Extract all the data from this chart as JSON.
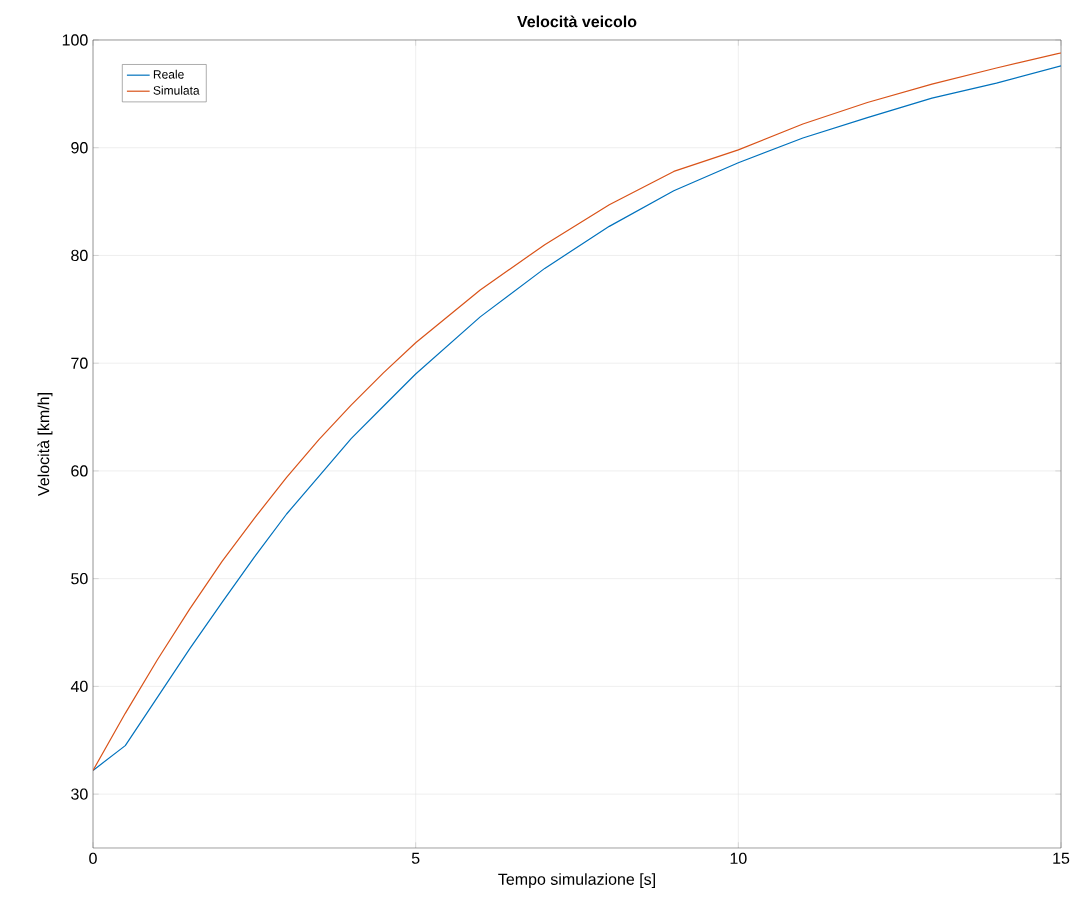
{
  "chart_data": {
    "type": "line",
    "title": "Velocità veicolo",
    "xlabel": "Tempo simulazione [s]",
    "ylabel": "Velocità [km/h]",
    "x": [
      0,
      0.5,
      1,
      1.5,
      2,
      2.5,
      3,
      3.5,
      4,
      4.5,
      5,
      6,
      7,
      8,
      9,
      10,
      11,
      12,
      13,
      14,
      15
    ],
    "series": [
      {
        "name": "Reale",
        "color": "#0072bd",
        "values": [
          32.2,
          34.5,
          39,
          43.5,
          47.8,
          52,
          56,
          59.5,
          63,
          66,
          69,
          74.3,
          78.8,
          82.7,
          86,
          88.6,
          90.9,
          92.8,
          94.6,
          96,
          97.6
        ]
      },
      {
        "name": "Simulata",
        "color": "#d95319",
        "values": [
          32.2,
          37.5,
          42.5,
          47.2,
          51.6,
          55.6,
          59.4,
          62.9,
          66.1,
          69.1,
          71.9,
          76.8,
          81,
          84.7,
          87.8,
          89.8,
          92.2,
          94.2,
          95.9,
          97.4,
          98.8
        ]
      }
    ],
    "xlim": [
      0,
      15
    ],
    "ylim": [
      25,
      100
    ],
    "xticks": [
      0,
      5,
      10,
      15
    ],
    "yticks": [
      30,
      40,
      50,
      60,
      70,
      80,
      90,
      100
    ],
    "grid": true,
    "legend": "top left",
    "marker": "none",
    "line_style": "solid"
  }
}
